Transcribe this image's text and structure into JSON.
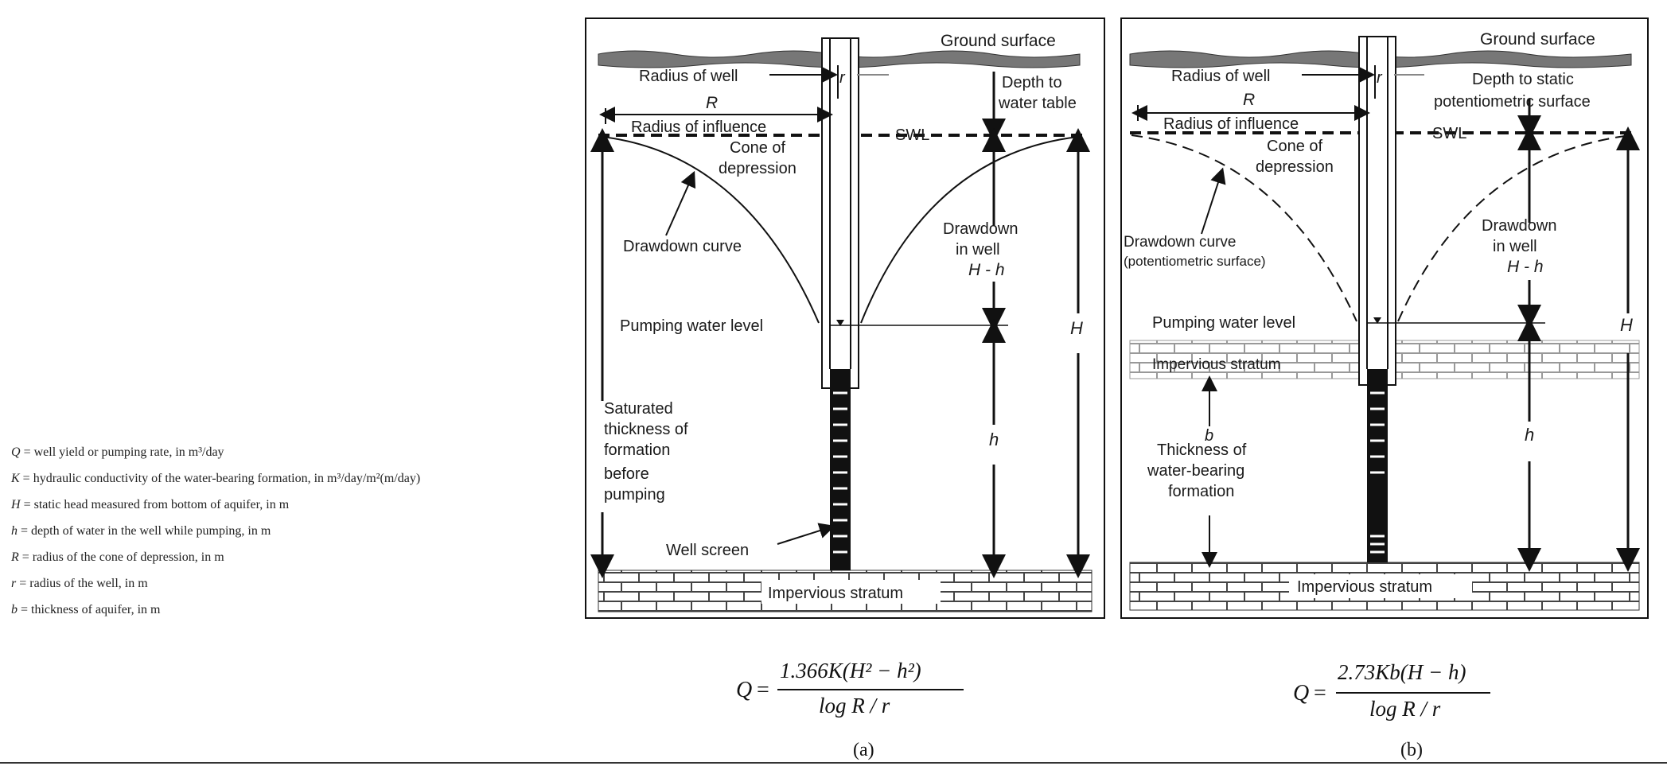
{
  "legend": [
    {
      "sym": "Q",
      "text": " = well yield or pumping rate, in m³/day"
    },
    {
      "sym": "K",
      "text": " = hydraulic conductivity of the water-bearing formation, in m³/day/m²(m/day)"
    },
    {
      "sym": "H",
      "text": " = static head measured from bottom of aquifer, in m"
    },
    {
      "sym": "h",
      "text": " = depth of water in the well while pumping, in m"
    },
    {
      "sym": "R",
      "text": " = radius of the cone of depression, in m"
    },
    {
      "sym": "r",
      "text": " = radius of the well, in m"
    },
    {
      "sym": "b",
      "text": " = thickness of aquifer, in m"
    }
  ],
  "panel_a": {
    "ground_surface": "Ground surface",
    "radius_of_well": "Radius of well",
    "r": "r",
    "depth_to_water_table": [
      "Depth to",
      "water table"
    ],
    "R": "R",
    "radius_of_influence": "Radius of influence",
    "swl": "SWL",
    "cone_of_depression": [
      "Cone of",
      "depression"
    ],
    "drawdown_curve": [
      "Drawdown curve"
    ],
    "drawdown_in_well": [
      "Drawdown",
      "in well",
      "H - h"
    ],
    "pumping_water_level": "Pumping water level",
    "H": "H",
    "h": "h",
    "saturated_thickness": [
      "Saturated",
      "thickness of",
      "formation",
      "before",
      "pumping"
    ],
    "well_screen": "Well screen",
    "impervious_stratum": "Impervious stratum"
  },
  "panel_b": {
    "ground_surface": "Ground surface",
    "radius_of_well": "Radius of well",
    "r": "r",
    "depth_to_static": [
      "Depth to static",
      "potentiometric surface"
    ],
    "R": "R",
    "radius_of_influence": "Radius of influence",
    "swl": "SWL",
    "cone_of_depression": [
      "Cone of",
      "depression"
    ],
    "drawdown_curve": [
      "Drawdown curve",
      "(potentiometric surface)"
    ],
    "drawdown_in_well": [
      "Drawdown",
      "in well",
      "H - h"
    ],
    "pumping_water_level": "Pumping water level",
    "H": "H",
    "h": "h",
    "impervious_stratum_top": "Impervious stratum",
    "b": "b",
    "thickness": [
      "Thickness of",
      "water-bearing",
      "formation"
    ],
    "impervious_stratum": "Impervious stratum"
  },
  "formula_a": {
    "lhs": "Q",
    "num": "1.366K(H² − h²)",
    "den": "log R / r"
  },
  "formula_b": {
    "lhs": "Q",
    "num": "2.73Kb(H − h)",
    "den": "log R / r"
  },
  "caption_a": "(a)",
  "caption_b": "(b)"
}
